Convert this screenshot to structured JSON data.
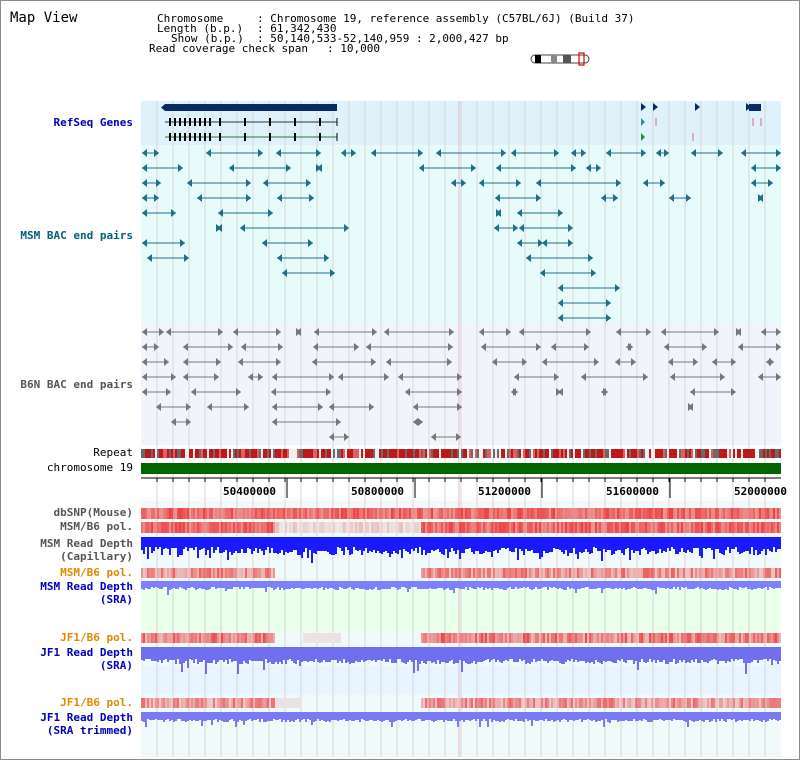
{
  "view": {
    "title": "Map View"
  },
  "info": {
    "chromosome_key": "Chromosome",
    "chromosome_value": ": Chromosome 19, reference assembly (C57BL/6J) (Build 37)",
    "length_key": "Length (b.p.)",
    "length_value": ": 61,342,430",
    "show_key": "Show (b.p.)",
    "show_value": ": 50,140,533-52,140,959 : 2,000,427 bp",
    "span_key": "Read coverage check span",
    "span_value": ": 10,000"
  },
  "tracks": {
    "refseq": "RefSeq Genes",
    "msm_bac": "MSM BAC end pairs",
    "b6n_bac": "B6N BAC end pairs",
    "repeat": "Repeat",
    "chromosome": "chromosome 19",
    "dbsnp": "dbSNP(Mouse)",
    "msm_pol": "MSM/B6 pol.",
    "msm_depth_cap_1": "MSM Read Depth",
    "msm_depth_cap_2": "(Capillary)",
    "msm_pol2": "MSM/B6 pol.",
    "msm_depth_sra_1": "MSM Read Depth",
    "msm_depth_sra_2": "(SRA)",
    "jf1_pol": "JF1/B6 pol.",
    "jf1_depth_sra_1": "JF1 Read Depth",
    "jf1_depth_sra_2": "(SRA)",
    "jf1_pol2": "JF1/B6 pol.",
    "jf1_depth_trim_1": "JF1 Read Depth",
    "jf1_depth_trim_2": "(SRA trimmed)"
  },
  "axis": {
    "ticks": [
      "50400000",
      "50800000",
      "51200000",
      "51600000",
      "52000000"
    ]
  },
  "colors": {
    "refseq_bg": "#dff2fb",
    "track_bg": "#e8fbfb",
    "gene_dark": "#0a2a66",
    "msm_bac": "#1f6f86",
    "b6n_bac": "#777777",
    "chromosome": "#006400",
    "snp_red": "#e03030",
    "depth_blue": "#1a1aff",
    "depth_light": "#8080ff",
    "label_orange": "#e08a00",
    "label_blue": "#0000c0"
  }
}
